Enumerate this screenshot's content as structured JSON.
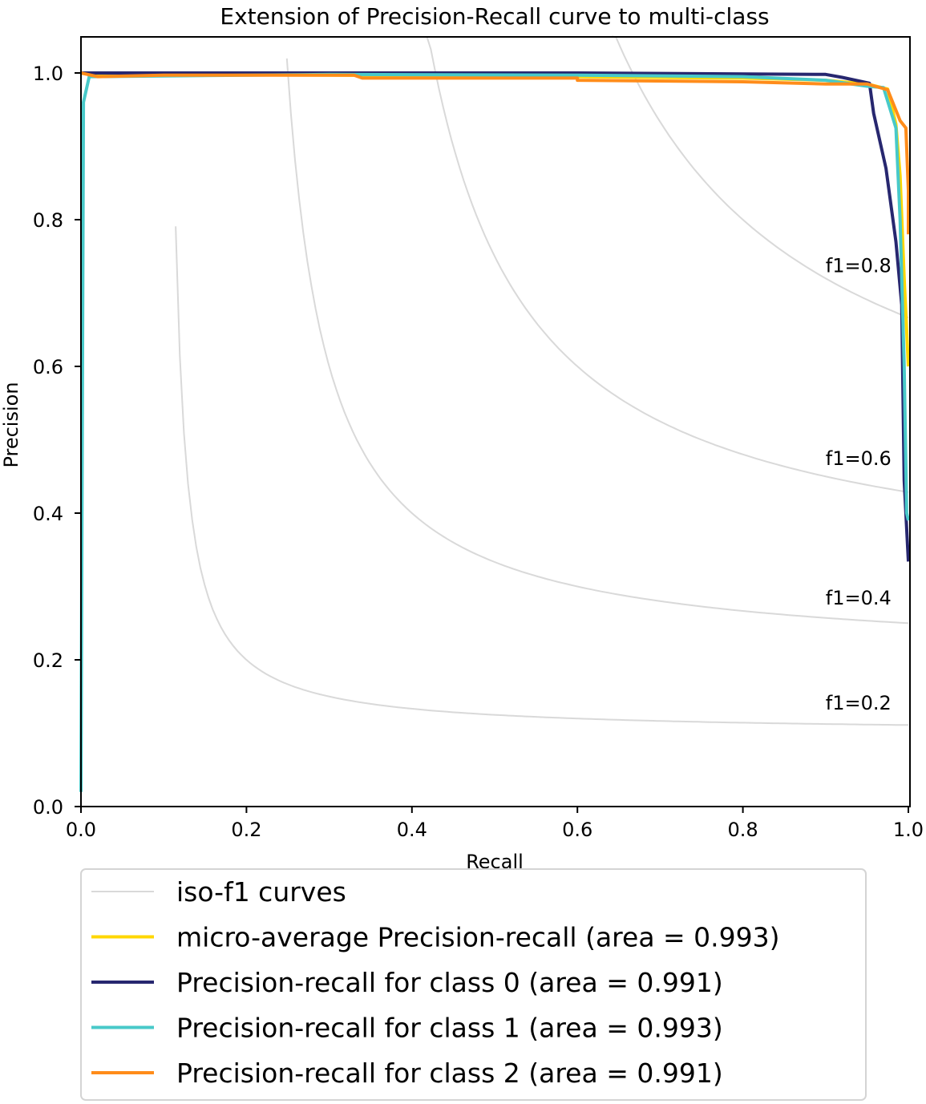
{
  "chart_data": {
    "type": "line",
    "title": "Extension of Precision-Recall curve to multi-class",
    "xlabel": "Recall",
    "ylabel": "Precision",
    "xlim": [
      0.0,
      1.0
    ],
    "ylim": [
      0.0,
      1.05
    ],
    "xticks": [
      "0.0",
      "0.2",
      "0.4",
      "0.6",
      "0.8",
      "1.0"
    ],
    "yticks": [
      "0.0",
      "0.2",
      "0.4",
      "0.6",
      "0.8",
      "1.0"
    ],
    "grid": false,
    "legend_position": "below",
    "iso_f1": {
      "legend_label": "iso-f1 curves",
      "color": "#d9d9d9",
      "values": [
        0.2,
        0.4,
        0.6,
        0.8
      ],
      "labels": [
        "f1=0.2",
        "f1=0.4",
        "f1=0.6",
        "f1=0.8"
      ]
    },
    "series": [
      {
        "name": "micro-average Precision-recall (area = 0.993)",
        "color": "#ffd700",
        "points": [
          [
            0.0,
            1.0
          ],
          [
            0.01,
            0.998
          ],
          [
            0.3,
            0.997
          ],
          [
            0.6,
            0.995
          ],
          [
            0.8,
            0.993
          ],
          [
            0.9,
            0.99
          ],
          [
            0.95,
            0.985
          ],
          [
            0.975,
            0.978
          ],
          [
            0.985,
            0.93
          ],
          [
            0.99,
            0.86
          ],
          [
            0.995,
            0.72
          ],
          [
            1.0,
            0.6
          ]
        ]
      },
      {
        "name": "Precision-recall for class 0 (area = 0.991)",
        "color": "#27276f",
        "points": [
          [
            0.0,
            1.0
          ],
          [
            0.3,
            1.0
          ],
          [
            0.6,
            1.0
          ],
          [
            0.9,
            0.998
          ],
          [
            0.92,
            0.994
          ],
          [
            0.953,
            0.986
          ],
          [
            0.958,
            0.945
          ],
          [
            0.973,
            0.87
          ],
          [
            0.985,
            0.77
          ],
          [
            0.992,
            0.684
          ],
          [
            0.995,
            0.444
          ],
          [
            1.0,
            0.334
          ]
        ]
      },
      {
        "name": "Precision-recall for class 1 (area = 0.993)",
        "color": "#48c9c9",
        "points": [
          [
            0.0,
            0.02
          ],
          [
            0.003,
            0.96
          ],
          [
            0.01,
            0.995
          ],
          [
            0.3,
            0.998
          ],
          [
            0.6,
            0.997
          ],
          [
            0.8,
            0.995
          ],
          [
            0.9,
            0.99
          ],
          [
            0.95,
            0.982
          ],
          [
            0.97,
            0.98
          ],
          [
            0.985,
            0.925
          ],
          [
            0.99,
            0.8
          ],
          [
            0.995,
            0.6
          ],
          [
            0.998,
            0.4
          ],
          [
            1.0,
            0.39
          ]
        ]
      },
      {
        "name": "Precision-recall for class 2 (area = 0.991)",
        "color": "#ff8c1a",
        "points": [
          [
            0.0,
            1.0
          ],
          [
            0.02,
            0.995
          ],
          [
            0.1,
            0.997
          ],
          [
            0.33,
            0.997
          ],
          [
            0.34,
            0.993
          ],
          [
            0.6,
            0.993
          ],
          [
            0.6,
            0.99
          ],
          [
            0.8,
            0.988
          ],
          [
            0.9,
            0.985
          ],
          [
            0.95,
            0.985
          ],
          [
            0.975,
            0.977
          ],
          [
            0.99,
            0.935
          ],
          [
            0.997,
            0.925
          ],
          [
            1.0,
            0.84
          ],
          [
            1.0,
            0.78
          ]
        ]
      }
    ]
  }
}
